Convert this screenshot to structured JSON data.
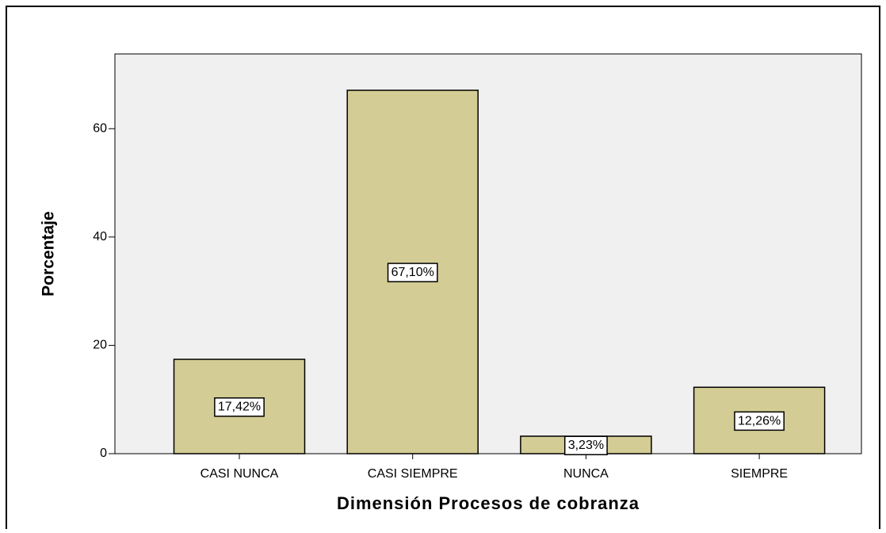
{
  "chart_data": {
    "type": "bar",
    "categories": [
      "CASI NUNCA",
      "CASI SIEMPRE",
      "NUNCA",
      "SIEMPRE"
    ],
    "values": [
      17.42,
      67.1,
      3.23,
      12.26
    ],
    "value_labels": [
      "17,42%",
      "67,10%",
      "3,23%",
      "12,26%"
    ],
    "color": "#d3cc94",
    "ylim": [
      0,
      73.8
    ],
    "yticks": [
      0,
      20,
      40,
      60
    ],
    "ylabel": "Porcentaje",
    "xlabel": "Dimensión Procesos de cobranza"
  }
}
